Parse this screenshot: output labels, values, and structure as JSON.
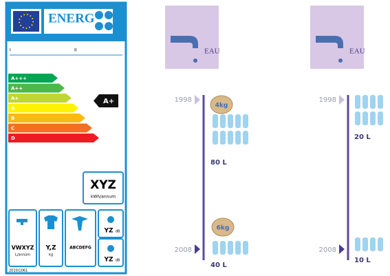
{
  "energy_label": {
    "brand": "ENERG",
    "roman": [
      "I",
      "II"
    ],
    "classes": [
      "A+++",
      "A++",
      "A+",
      "A",
      "B",
      "C",
      "D"
    ],
    "rating": "A+",
    "consumption": "XYZ",
    "consumption_unit": "kWh/annum",
    "water": "VWXYZ",
    "water_unit": "L/annum",
    "capacity": "Y,Z",
    "capacity_unit": "kg",
    "spin": "ABCDEFG",
    "noise": [
      "YZ",
      "YZ"
    ],
    "noise_unit": "dB",
    "regulation": "2010/1061"
  },
  "panels": [
    {
      "label": "EAU",
      "timeline": [
        {
          "year": "1998",
          "load": "4kg",
          "water": "80 L"
        },
        {
          "year": "2008",
          "load": "6kg",
          "water": "40 L"
        }
      ]
    },
    {
      "label": "EAU",
      "timeline": [
        {
          "year": "1998",
          "water": "20 L"
        },
        {
          "year": "2008",
          "water": "10 L"
        }
      ]
    }
  ]
}
